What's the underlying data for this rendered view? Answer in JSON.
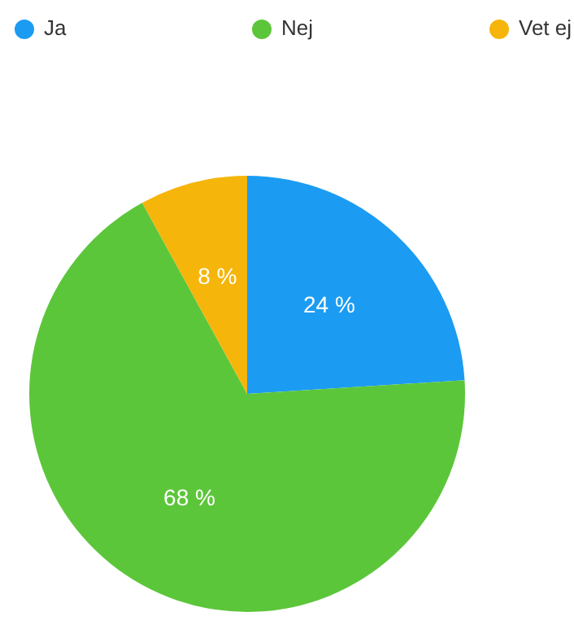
{
  "chart_data": {
    "type": "pie",
    "categories": [
      "Ja",
      "Nej",
      "Vet ej"
    ],
    "values": [
      24,
      68,
      8
    ],
    "colors": [
      "#1b9cf2",
      "#5cc63a",
      "#f5b50a"
    ],
    "value_labels": [
      "24 %",
      "68 %",
      "8 %"
    ],
    "legend": "top"
  }
}
